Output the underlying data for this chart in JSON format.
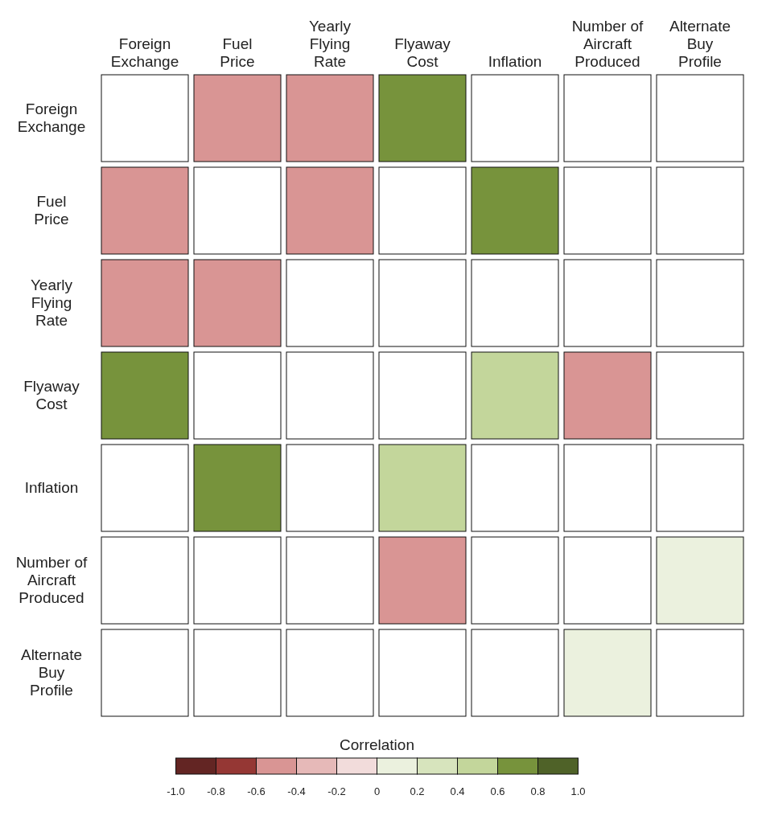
{
  "chart_data": {
    "type": "heatmap",
    "clabel": "Correlation",
    "categories": [
      "Foreign Exchange",
      "Fuel Price",
      "Yearly Flying Rate",
      "Flyaway Cost",
      "Inflation",
      "Number of Aircraft Produced",
      "Alternate Buy Profile"
    ],
    "y_categories": [
      "Foreign Exchange",
      "Fuel Price",
      "Yearly Flying Rate",
      "Flyaway Cost",
      "Inflation",
      "Number of Aircraft Produced",
      "Alternate Buy Profile"
    ],
    "cells": [
      [
        null,
        -0.5,
        -0.5,
        0.7,
        null,
        null,
        null
      ],
      [
        -0.5,
        null,
        -0.5,
        null,
        0.7,
        null,
        null
      ],
      [
        -0.5,
        -0.5,
        null,
        null,
        null,
        null,
        null
      ],
      [
        0.7,
        null,
        null,
        null,
        0.5,
        -0.5,
        null
      ],
      [
        null,
        0.7,
        null,
        0.5,
        null,
        null,
        null
      ],
      [
        null,
        null,
        null,
        -0.5,
        null,
        null,
        0.1
      ],
      [
        null,
        null,
        null,
        null,
        null,
        0.1,
        null
      ]
    ],
    "clim": [
      -1,
      1
    ],
    "cticks": [
      {
        "value": -1,
        "label": "-1.0"
      },
      -0.8,
      -0.6,
      -0.4,
      -0.2,
      0,
      0.2,
      0.4,
      0.6,
      0.8,
      {
        "value": 1,
        "label": "1.0"
      }
    ],
    "colors": [
      "#632523",
      "#953734",
      "#d99594",
      "#e6b9b8",
      "#f2dcdb",
      "#ebf1de",
      "#d7e4bd",
      "#c3d69b",
      "#77933c",
      "#4f6228"
    ]
  }
}
